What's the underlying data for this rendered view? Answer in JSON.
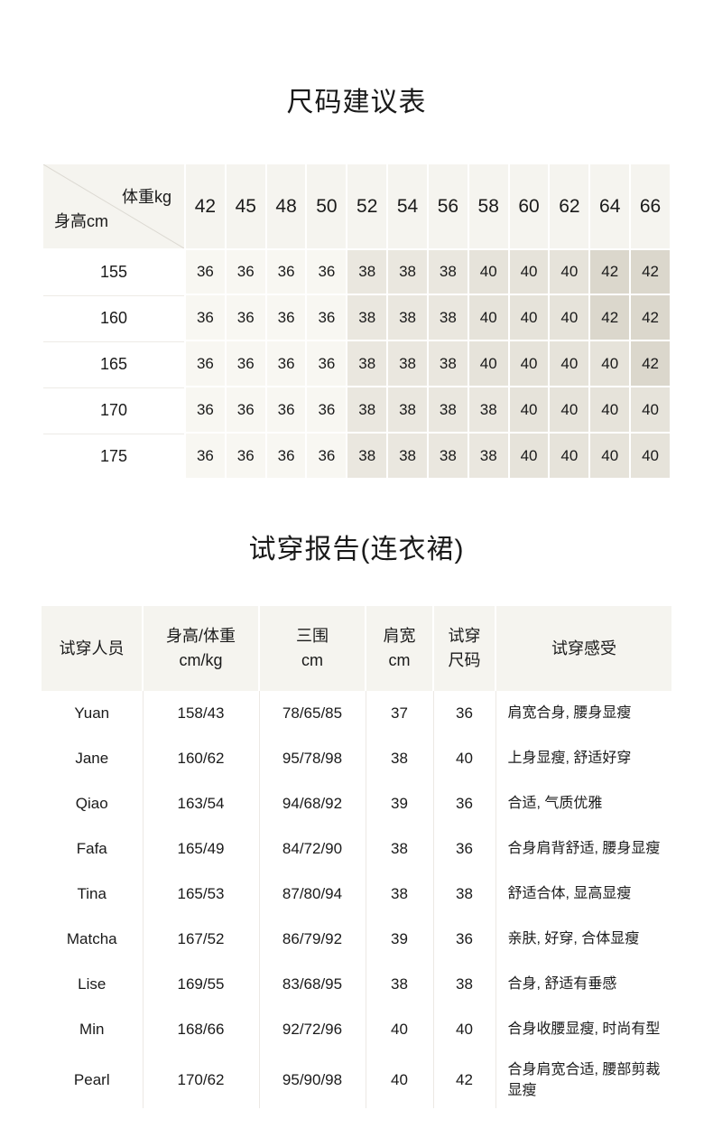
{
  "colors": {
    "header_bg": "#f5f4ef",
    "text": "#1a1a1a",
    "hairline": "#edebe6",
    "column_line": "#ece9e4",
    "diagonal_line": "#dcd9d2",
    "size_36": "#f8f7f2",
    "size_38": "#eae7df",
    "size_40": "#e6e3da",
    "size_42": "#dbd7cc"
  },
  "size_table": {
    "title": "尺码建议表",
    "corner": {
      "top": "体重kg",
      "bottom": "身高cm"
    },
    "weights": [
      "42",
      "45",
      "48",
      "50",
      "52",
      "54",
      "56",
      "58",
      "60",
      "62",
      "64",
      "66"
    ],
    "rows": [
      {
        "height": "155",
        "sizes": [
          "36",
          "36",
          "36",
          "36",
          "38",
          "38",
          "38",
          "40",
          "40",
          "40",
          "42",
          "42"
        ]
      },
      {
        "height": "160",
        "sizes": [
          "36",
          "36",
          "36",
          "36",
          "38",
          "38",
          "38",
          "40",
          "40",
          "40",
          "42",
          "42"
        ]
      },
      {
        "height": "165",
        "sizes": [
          "36",
          "36",
          "36",
          "36",
          "38",
          "38",
          "38",
          "40",
          "40",
          "40",
          "40",
          "42"
        ]
      },
      {
        "height": "170",
        "sizes": [
          "36",
          "36",
          "36",
          "36",
          "38",
          "38",
          "38",
          "38",
          "40",
          "40",
          "40",
          "40"
        ]
      },
      {
        "height": "175",
        "sizes": [
          "36",
          "36",
          "36",
          "36",
          "38",
          "38",
          "38",
          "38",
          "40",
          "40",
          "40",
          "40"
        ]
      }
    ]
  },
  "fit_report": {
    "title": "试穿报告(连衣裙)",
    "columns": [
      {
        "lines": [
          "试穿人员"
        ]
      },
      {
        "lines": [
          "身高/体重",
          "cm/kg"
        ]
      },
      {
        "lines": [
          "三围",
          "cm"
        ]
      },
      {
        "lines": [
          "肩宽",
          "cm"
        ]
      },
      {
        "lines": [
          "试穿",
          "尺码"
        ]
      },
      {
        "lines": [
          "试穿感受"
        ]
      }
    ],
    "rows": [
      {
        "name": "Yuan",
        "hw": "158/43",
        "bwh": "78/65/85",
        "shoulder": "37",
        "size": "36",
        "feel": "肩宽合身, 腰身显瘦"
      },
      {
        "name": "Jane",
        "hw": "160/62",
        "bwh": "95/78/98",
        "shoulder": "38",
        "size": "40",
        "feel": "上身显瘦, 舒适好穿"
      },
      {
        "name": "Qiao",
        "hw": "163/54",
        "bwh": "94/68/92",
        "shoulder": "39",
        "size": "36",
        "feel": "合适, 气质优雅"
      },
      {
        "name": "Fafa",
        "hw": "165/49",
        "bwh": "84/72/90",
        "shoulder": "38",
        "size": "36",
        "feel": "合身肩背舒适, 腰身显瘦"
      },
      {
        "name": "Tina",
        "hw": "165/53",
        "bwh": "87/80/94",
        "shoulder": "38",
        "size": "38",
        "feel": "舒适合体, 显高显瘦"
      },
      {
        "name": "Matcha",
        "hw": "167/52",
        "bwh": "86/79/92",
        "shoulder": "39",
        "size": "36",
        "feel": "亲肤, 好穿, 合体显瘦"
      },
      {
        "name": "Lise",
        "hw": "169/55",
        "bwh": "83/68/95",
        "shoulder": "38",
        "size": "38",
        "feel": "合身, 舒适有垂感"
      },
      {
        "name": "Min",
        "hw": "168/66",
        "bwh": "92/72/96",
        "shoulder": "40",
        "size": "40",
        "feel": "合身收腰显瘦, 时尚有型"
      },
      {
        "name": "Pearl",
        "hw": "170/62",
        "bwh": "95/90/98",
        "shoulder": "40",
        "size": "42",
        "feel": "合身肩宽合适, 腰部剪裁显瘦"
      }
    ]
  }
}
